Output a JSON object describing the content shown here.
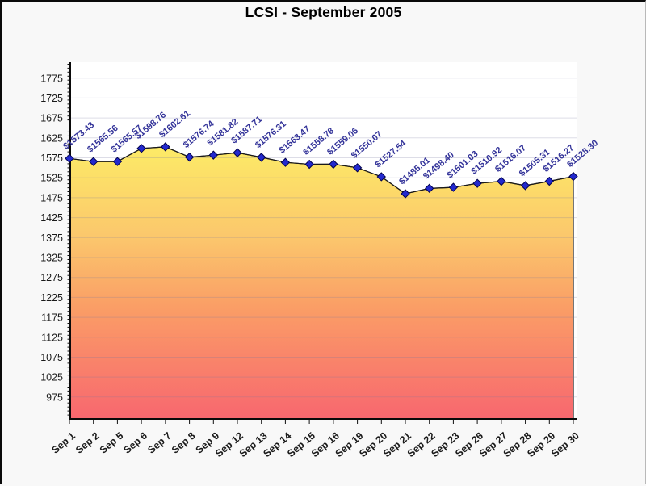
{
  "window": {
    "background": "#f8f8f8",
    "plot_background": "#ffffff"
  },
  "chart_data": {
    "type": "area",
    "title": "LCSI - September 2005",
    "xlabel": "",
    "ylabel": "",
    "categories": [
      "Sep 1",
      "Sep 2",
      "Sep 5",
      "Sep 6",
      "Sep 7",
      "Sep 8",
      "Sep 9",
      "Sep 12",
      "Sep 13",
      "Sep 14",
      "Sep 15",
      "Sep 16",
      "Sep 19",
      "Sep 20",
      "Sep 21",
      "Sep 22",
      "Sep 23",
      "Sep 26",
      "Sep 27",
      "Sep 28",
      "Sep 29",
      "Sep 30"
    ],
    "values": [
      1573.43,
      1565.56,
      1565.57,
      1598.76,
      1602.61,
      1576.74,
      1581.82,
      1587.71,
      1576.31,
      1563.47,
      1558.78,
      1559.06,
      1550.07,
      1527.54,
      1485.01,
      1498.4,
      1501.03,
      1510.92,
      1516.07,
      1505.31,
      1516.27,
      1528.3
    ],
    "point_labels": [
      "$1573.43",
      "$1565.56",
      "$1565.57",
      "$1598.76",
      "$1602.61",
      "$1576.74",
      "$1581.82",
      "$1587.71",
      "$1576.31",
      "$1563.47",
      "$1558.78",
      "$1559.06",
      "$1550.07",
      "$1527.54",
      "$1485.01",
      "$1498.40",
      "$1501.03",
      "$1510.92",
      "$1516.07",
      "$1505.31",
      "$1516.27",
      "$1528.30"
    ],
    "y_tick_labels": [
      "1775",
      "1725",
      "1675",
      "1625",
      "1575",
      "1525",
      "1475",
      "1425",
      "1375",
      "1325",
      "1275",
      "1225",
      "1175",
      "1125",
      "1075",
      "1025",
      "975"
    ],
    "ylim": [
      920,
      1815
    ],
    "grid": true,
    "legend_position": "none",
    "colors": {
      "marker": "#2329cd",
      "marker_edge": "#00004d",
      "line": "#1a1a1a",
      "point_label_text": "#333399",
      "axis_text": "#1a1a1a",
      "gridline": "rgba(120,120,160,0.25)",
      "area_gradient_top": "#fdee66",
      "area_gradient_upper_mid": "#fbc76c",
      "area_gradient_lower_mid": "#fa9e66",
      "area_gradient_bottom": "#f8676f"
    }
  }
}
